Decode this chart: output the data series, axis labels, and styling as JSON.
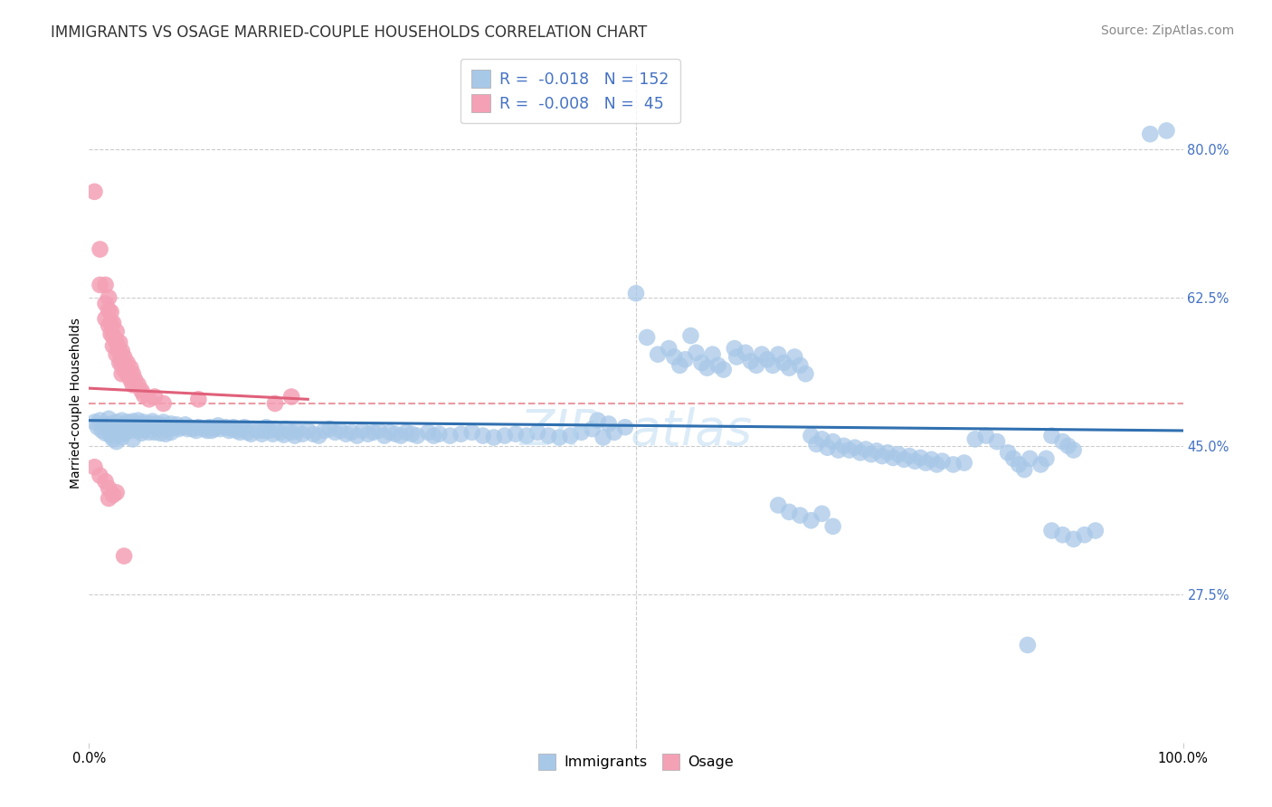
{
  "title": "IMMIGRANTS VS OSAGE MARRIED-COUPLE HOUSEHOLDS CORRELATION CHART",
  "source": "Source: ZipAtlas.com",
  "ylabel": "Married-couple Households",
  "xlim": [
    0.0,
    1.0
  ],
  "ylim": [
    0.1,
    0.9
  ],
  "yticks": [
    0.275,
    0.45,
    0.625,
    0.8
  ],
  "ytick_labels": [
    "27.5%",
    "45.0%",
    "62.5%",
    "80.0%"
  ],
  "xticks": [
    0.0,
    0.5,
    1.0
  ],
  "xtick_labels": [
    "0.0%",
    "",
    "100.0%"
  ],
  "blue_color": "#a8c8e8",
  "pink_color": "#f4a0b5",
  "blue_line_color": "#3070b0",
  "pink_line_color": "#e0607a",
  "pink_dashed_color": "#e8909a",
  "blue_scatter": [
    [
      0.005,
      0.478
    ],
    [
      0.008,
      0.472
    ],
    [
      0.01,
      0.48
    ],
    [
      0.012,
      0.468
    ],
    [
      0.015,
      0.475
    ],
    [
      0.015,
      0.465
    ],
    [
      0.018,
      0.482
    ],
    [
      0.018,
      0.47
    ],
    [
      0.02,
      0.476
    ],
    [
      0.02,
      0.462
    ],
    [
      0.022,
      0.47
    ],
    [
      0.022,
      0.458
    ],
    [
      0.025,
      0.478
    ],
    [
      0.025,
      0.465
    ],
    [
      0.025,
      0.455
    ],
    [
      0.028,
      0.474
    ],
    [
      0.028,
      0.464
    ],
    [
      0.03,
      0.48
    ],
    [
      0.03,
      0.47
    ],
    [
      0.03,
      0.46
    ],
    [
      0.032,
      0.475
    ],
    [
      0.032,
      0.465
    ],
    [
      0.035,
      0.478
    ],
    [
      0.035,
      0.468
    ],
    [
      0.038,
      0.472
    ],
    [
      0.04,
      0.479
    ],
    [
      0.04,
      0.468
    ],
    [
      0.04,
      0.458
    ],
    [
      0.042,
      0.476
    ],
    [
      0.045,
      0.48
    ],
    [
      0.045,
      0.47
    ],
    [
      0.048,
      0.475
    ],
    [
      0.048,
      0.465
    ],
    [
      0.05,
      0.478
    ],
    [
      0.05,
      0.468
    ],
    [
      0.052,
      0.474
    ],
    [
      0.055,
      0.476
    ],
    [
      0.055,
      0.466
    ],
    [
      0.058,
      0.479
    ],
    [
      0.06,
      0.476
    ],
    [
      0.06,
      0.466
    ],
    [
      0.062,
      0.472
    ],
    [
      0.065,
      0.475
    ],
    [
      0.065,
      0.465
    ],
    [
      0.068,
      0.478
    ],
    [
      0.07,
      0.474
    ],
    [
      0.07,
      0.464
    ],
    [
      0.072,
      0.47
    ],
    [
      0.075,
      0.476
    ],
    [
      0.075,
      0.466
    ],
    [
      0.078,
      0.472
    ],
    [
      0.08,
      0.475
    ],
    [
      0.082,
      0.47
    ],
    [
      0.085,
      0.472
    ],
    [
      0.088,
      0.475
    ],
    [
      0.09,
      0.47
    ],
    [
      0.092,
      0.472
    ],
    [
      0.095,
      0.47
    ],
    [
      0.098,
      0.468
    ],
    [
      0.1,
      0.472
    ],
    [
      0.105,
      0.47
    ],
    [
      0.108,
      0.468
    ],
    [
      0.11,
      0.472
    ],
    [
      0.112,
      0.468
    ],
    [
      0.115,
      0.47
    ],
    [
      0.118,
      0.474
    ],
    [
      0.12,
      0.47
    ],
    [
      0.125,
      0.472
    ],
    [
      0.128,
      0.468
    ],
    [
      0.13,
      0.47
    ],
    [
      0.132,
      0.472
    ],
    [
      0.135,
      0.468
    ],
    [
      0.138,
      0.466
    ],
    [
      0.14,
      0.47
    ],
    [
      0.142,
      0.472
    ],
    [
      0.145,
      0.466
    ],
    [
      0.148,
      0.464
    ],
    [
      0.15,
      0.47
    ],
    [
      0.155,
      0.468
    ],
    [
      0.158,
      0.464
    ],
    [
      0.16,
      0.468
    ],
    [
      0.162,
      0.472
    ],
    [
      0.165,
      0.468
    ],
    [
      0.168,
      0.464
    ],
    [
      0.17,
      0.47
    ],
    [
      0.175,
      0.466
    ],
    [
      0.178,
      0.463
    ],
    [
      0.18,
      0.47
    ],
    [
      0.185,
      0.466
    ],
    [
      0.188,
      0.462
    ],
    [
      0.19,
      0.468
    ],
    [
      0.195,
      0.464
    ],
    [
      0.2,
      0.468
    ],
    [
      0.205,
      0.464
    ],
    [
      0.21,
      0.462
    ],
    [
      0.215,
      0.468
    ],
    [
      0.22,
      0.47
    ],
    [
      0.225,
      0.466
    ],
    [
      0.23,
      0.468
    ],
    [
      0.235,
      0.464
    ],
    [
      0.24,
      0.466
    ],
    [
      0.245,
      0.462
    ],
    [
      0.25,
      0.468
    ],
    [
      0.255,
      0.464
    ],
    [
      0.26,
      0.466
    ],
    [
      0.265,
      0.468
    ],
    [
      0.27,
      0.462
    ],
    [
      0.275,
      0.466
    ],
    [
      0.28,
      0.464
    ],
    [
      0.285,
      0.462
    ],
    [
      0.29,
      0.466
    ],
    [
      0.295,
      0.464
    ],
    [
      0.3,
      0.462
    ],
    [
      0.31,
      0.466
    ],
    [
      0.315,
      0.462
    ],
    [
      0.32,
      0.464
    ],
    [
      0.33,
      0.462
    ],
    [
      0.34,
      0.464
    ],
    [
      0.35,
      0.466
    ],
    [
      0.36,
      0.462
    ],
    [
      0.37,
      0.46
    ],
    [
      0.38,
      0.462
    ],
    [
      0.39,
      0.464
    ],
    [
      0.4,
      0.462
    ],
    [
      0.41,
      0.466
    ],
    [
      0.42,
      0.462
    ],
    [
      0.43,
      0.46
    ],
    [
      0.44,
      0.462
    ],
    [
      0.45,
      0.466
    ],
    [
      0.46,
      0.47
    ],
    [
      0.465,
      0.48
    ],
    [
      0.47,
      0.46
    ],
    [
      0.475,
      0.476
    ],
    [
      0.48,
      0.466
    ],
    [
      0.49,
      0.472
    ],
    [
      0.5,
      0.63
    ],
    [
      0.51,
      0.578
    ],
    [
      0.52,
      0.558
    ],
    [
      0.53,
      0.565
    ],
    [
      0.535,
      0.555
    ],
    [
      0.54,
      0.545
    ],
    [
      0.545,
      0.552
    ],
    [
      0.55,
      0.58
    ],
    [
      0.555,
      0.56
    ],
    [
      0.56,
      0.548
    ],
    [
      0.565,
      0.542
    ],
    [
      0.57,
      0.558
    ],
    [
      0.575,
      0.545
    ],
    [
      0.58,
      0.54
    ],
    [
      0.59,
      0.565
    ],
    [
      0.592,
      0.555
    ],
    [
      0.6,
      0.56
    ],
    [
      0.605,
      0.55
    ],
    [
      0.61,
      0.545
    ],
    [
      0.615,
      0.558
    ],
    [
      0.62,
      0.552
    ],
    [
      0.625,
      0.545
    ],
    [
      0.63,
      0.558
    ],
    [
      0.635,
      0.548
    ],
    [
      0.64,
      0.542
    ],
    [
      0.645,
      0.555
    ],
    [
      0.65,
      0.545
    ],
    [
      0.655,
      0.535
    ],
    [
      0.66,
      0.462
    ],
    [
      0.665,
      0.452
    ],
    [
      0.67,
      0.458
    ],
    [
      0.675,
      0.448
    ],
    [
      0.68,
      0.455
    ],
    [
      0.685,
      0.445
    ],
    [
      0.69,
      0.45
    ],
    [
      0.695,
      0.445
    ],
    [
      0.7,
      0.448
    ],
    [
      0.705,
      0.442
    ],
    [
      0.71,
      0.446
    ],
    [
      0.715,
      0.44
    ],
    [
      0.72,
      0.444
    ],
    [
      0.725,
      0.438
    ],
    [
      0.73,
      0.442
    ],
    [
      0.735,
      0.436
    ],
    [
      0.74,
      0.44
    ],
    [
      0.745,
      0.434
    ],
    [
      0.75,
      0.438
    ],
    [
      0.755,
      0.432
    ],
    [
      0.76,
      0.436
    ],
    [
      0.765,
      0.43
    ],
    [
      0.77,
      0.434
    ],
    [
      0.775,
      0.428
    ],
    [
      0.78,
      0.432
    ],
    [
      0.79,
      0.428
    ],
    [
      0.8,
      0.43
    ],
    [
      0.81,
      0.458
    ],
    [
      0.82,
      0.462
    ],
    [
      0.83,
      0.455
    ],
    [
      0.84,
      0.442
    ],
    [
      0.845,
      0.435
    ],
    [
      0.85,
      0.428
    ],
    [
      0.855,
      0.422
    ],
    [
      0.86,
      0.435
    ],
    [
      0.87,
      0.428
    ],
    [
      0.875,
      0.435
    ],
    [
      0.88,
      0.462
    ],
    [
      0.89,
      0.455
    ],
    [
      0.895,
      0.45
    ],
    [
      0.9,
      0.445
    ],
    [
      0.88,
      0.35
    ],
    [
      0.89,
      0.345
    ],
    [
      0.9,
      0.34
    ],
    [
      0.91,
      0.345
    ],
    [
      0.92,
      0.35
    ],
    [
      0.63,
      0.38
    ],
    [
      0.64,
      0.372
    ],
    [
      0.65,
      0.368
    ],
    [
      0.66,
      0.362
    ],
    [
      0.67,
      0.37
    ],
    [
      0.68,
      0.355
    ],
    [
      0.97,
      0.818
    ],
    [
      0.985,
      0.822
    ],
    [
      0.858,
      0.215
    ]
  ],
  "pink_scatter": [
    [
      0.005,
      0.75
    ],
    [
      0.01,
      0.682
    ],
    [
      0.01,
      0.64
    ],
    [
      0.015,
      0.64
    ],
    [
      0.015,
      0.618
    ],
    [
      0.015,
      0.6
    ],
    [
      0.018,
      0.625
    ],
    [
      0.018,
      0.61
    ],
    [
      0.018,
      0.592
    ],
    [
      0.02,
      0.608
    ],
    [
      0.02,
      0.595
    ],
    [
      0.02,
      0.582
    ],
    [
      0.022,
      0.595
    ],
    [
      0.022,
      0.58
    ],
    [
      0.022,
      0.568
    ],
    [
      0.025,
      0.585
    ],
    [
      0.025,
      0.572
    ],
    [
      0.025,
      0.558
    ],
    [
      0.028,
      0.572
    ],
    [
      0.028,
      0.56
    ],
    [
      0.028,
      0.548
    ],
    [
      0.03,
      0.562
    ],
    [
      0.03,
      0.548
    ],
    [
      0.03,
      0.535
    ],
    [
      0.032,
      0.555
    ],
    [
      0.032,
      0.54
    ],
    [
      0.035,
      0.548
    ],
    [
      0.035,
      0.535
    ],
    [
      0.038,
      0.542
    ],
    [
      0.038,
      0.528
    ],
    [
      0.04,
      0.535
    ],
    [
      0.04,
      0.522
    ],
    [
      0.042,
      0.528
    ],
    [
      0.045,
      0.522
    ],
    [
      0.048,
      0.515
    ],
    [
      0.05,
      0.51
    ],
    [
      0.055,
      0.505
    ],
    [
      0.06,
      0.508
    ],
    [
      0.068,
      0.5
    ],
    [
      0.1,
      0.505
    ],
    [
      0.17,
      0.5
    ],
    [
      0.185,
      0.508
    ],
    [
      0.005,
      0.425
    ],
    [
      0.01,
      0.415
    ],
    [
      0.015,
      0.408
    ],
    [
      0.018,
      0.4
    ],
    [
      0.018,
      0.388
    ],
    [
      0.022,
      0.392
    ],
    [
      0.025,
      0.395
    ],
    [
      0.032,
      0.32
    ]
  ],
  "background_color": "#ffffff",
  "grid_color": "#cccccc",
  "title_fontsize": 12,
  "axis_label_fontsize": 10,
  "tick_fontsize": 10.5,
  "source_fontsize": 10
}
